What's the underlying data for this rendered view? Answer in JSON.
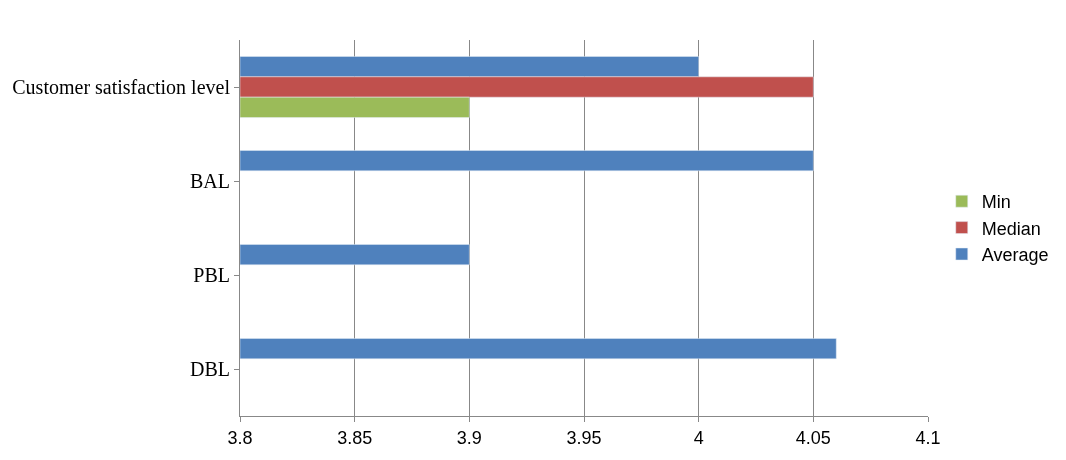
{
  "chart_data": {
    "type": "bar",
    "orientation": "horizontal",
    "categories": [
      "Customer satisfaction level",
      "BAL",
      "PBL",
      "DBL"
    ],
    "series": [
      {
        "name": "Min",
        "color": "#9bbb59",
        "values": [
          3.9,
          null,
          null,
          null
        ]
      },
      {
        "name": "Median",
        "color": "#c0504d",
        "values": [
          4.05,
          null,
          null,
          null
        ]
      },
      {
        "name": "Average",
        "color": "#4f81bd",
        "values": [
          4.0,
          4.05,
          3.9,
          4.06
        ]
      }
    ],
    "xlim": [
      3.8,
      4.1
    ],
    "xticks": [
      3.8,
      3.85,
      3.9,
      3.95,
      4,
      4.05,
      4.1
    ],
    "grid": "x",
    "legend": "right"
  }
}
